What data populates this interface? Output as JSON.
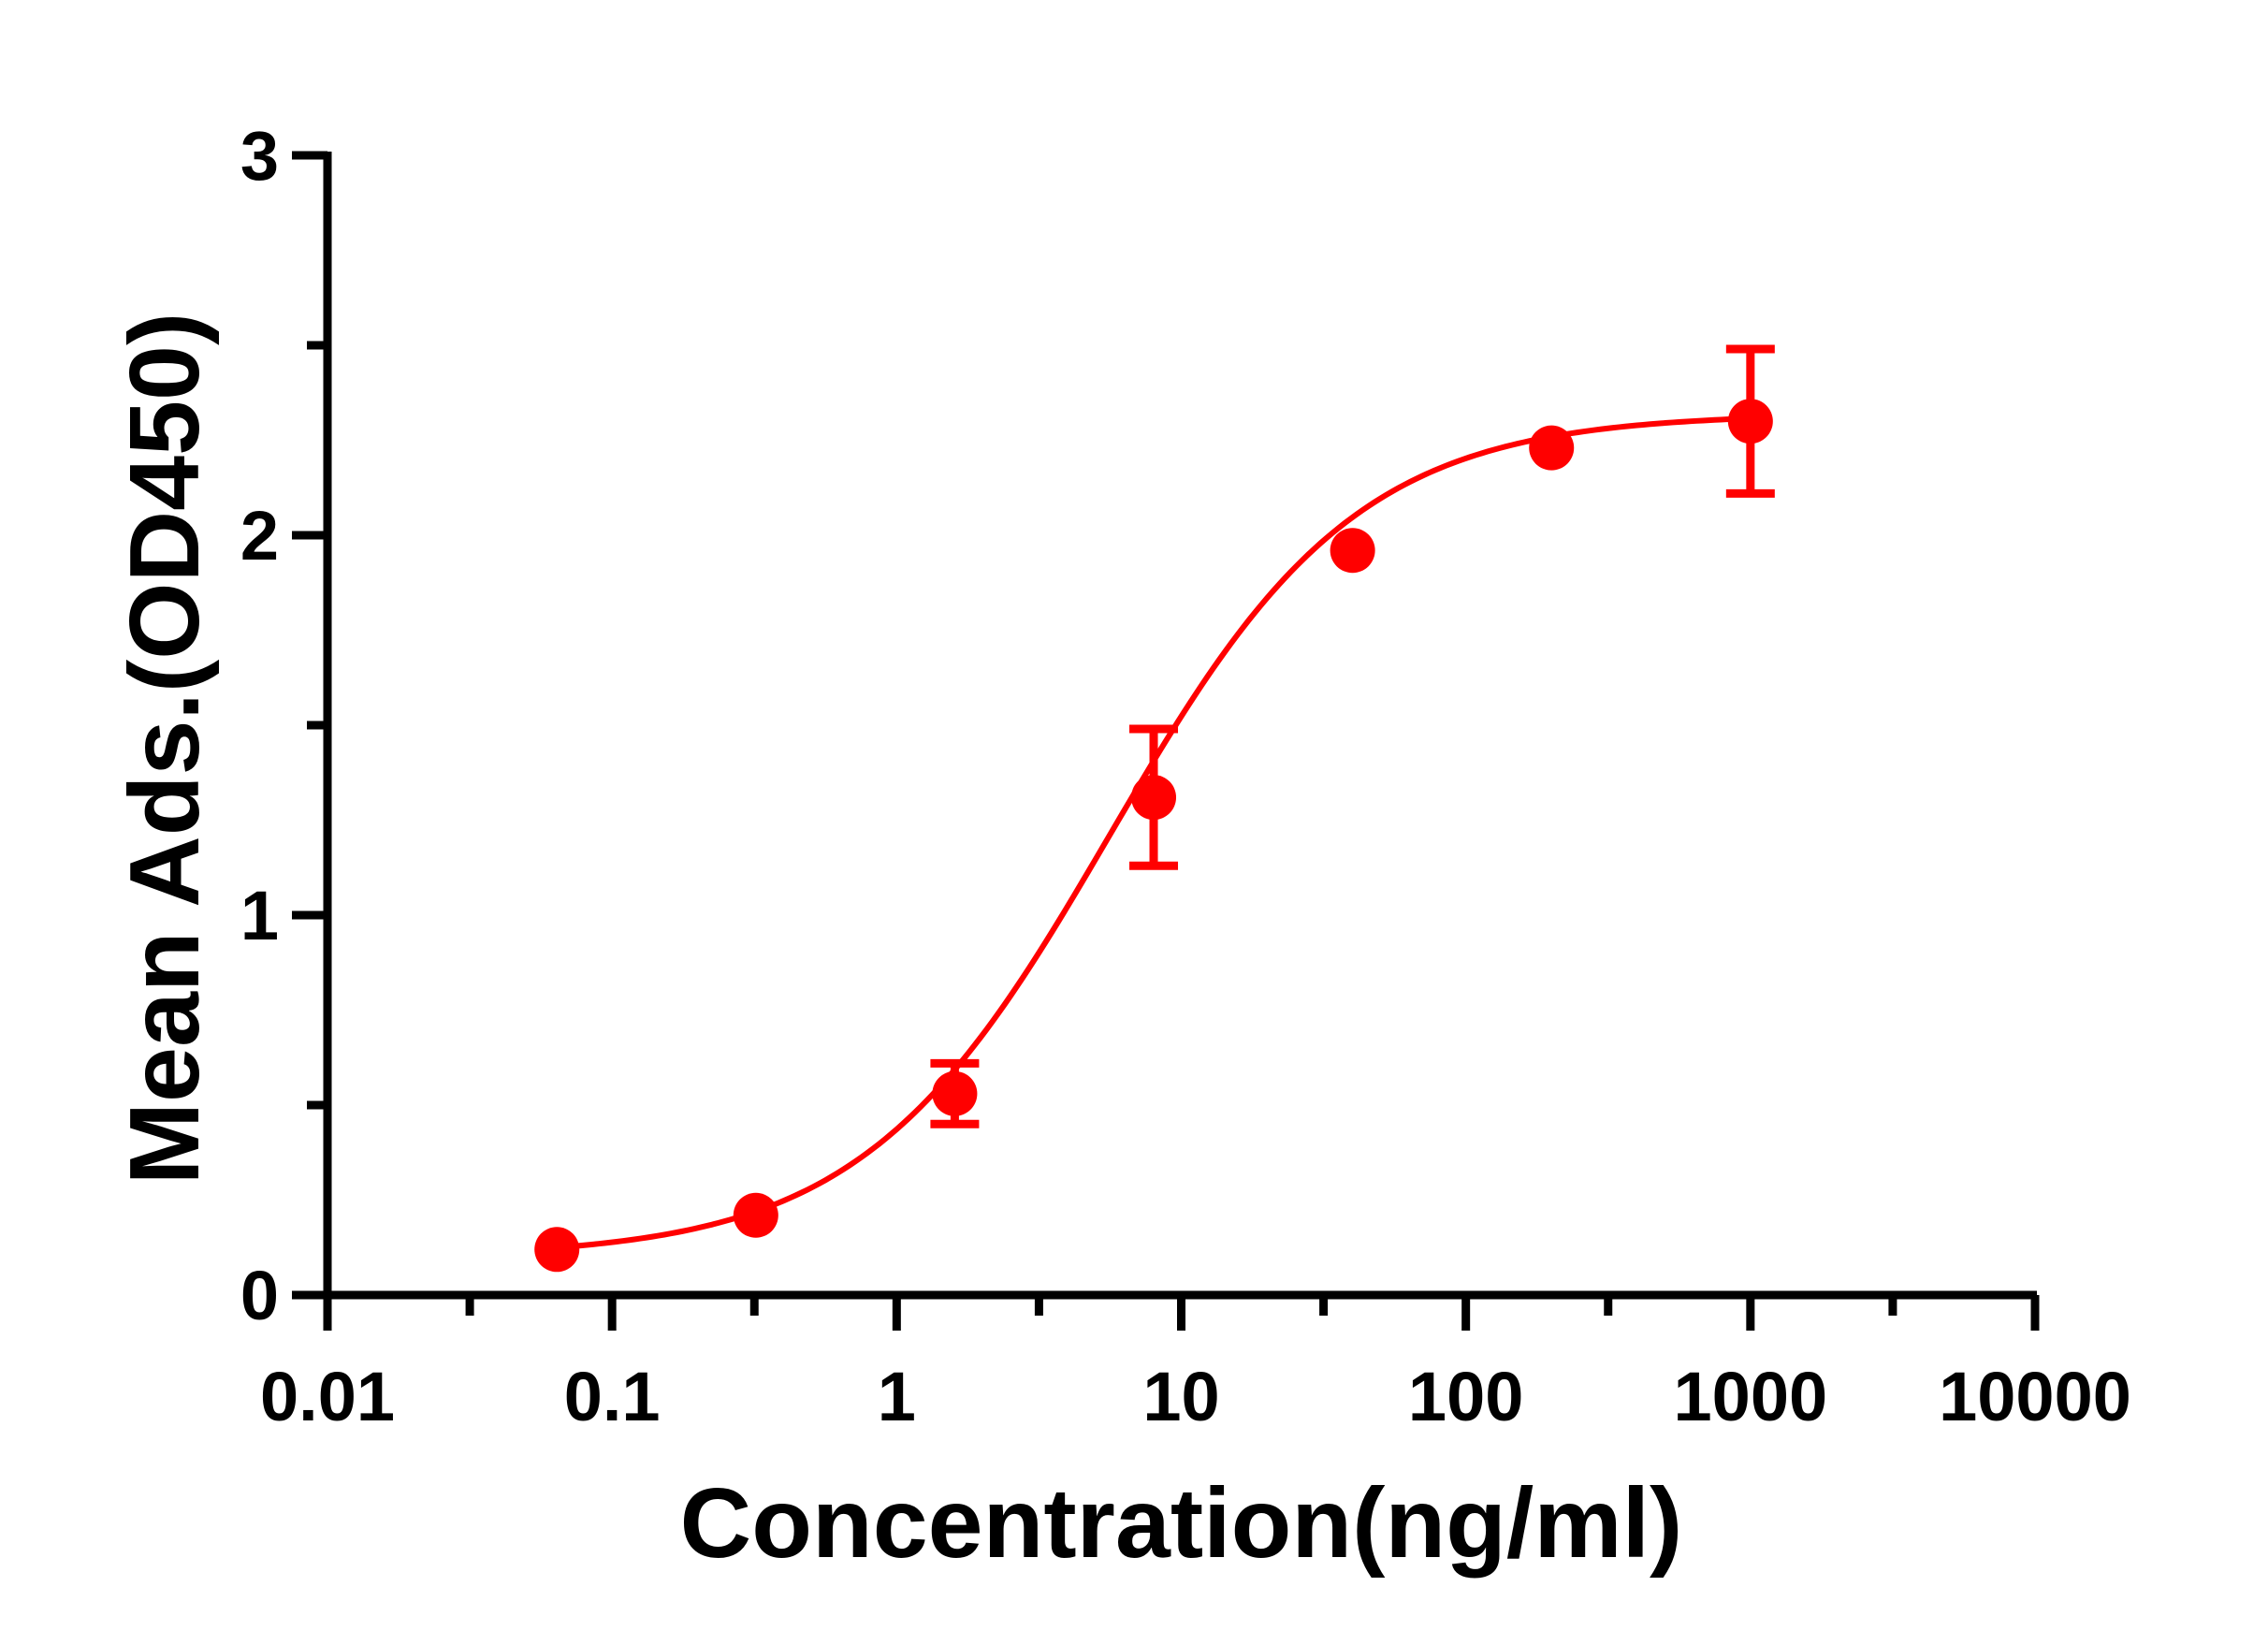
{
  "chart_data": {
    "type": "scatter",
    "title": "",
    "xlabel": "Concentration(ng/ml)",
    "ylabel": "Mean Ads.(OD450)",
    "x_scale": "log",
    "xlim": [
      0.01,
      10000
    ],
    "ylim": [
      0,
      3
    ],
    "x_ticks": [
      0.01,
      0.1,
      1,
      10,
      100,
      1000,
      10000
    ],
    "x_tick_labels": [
      "0.01",
      "0.1",
      "1",
      "10",
      "100",
      "1000",
      "10000"
    ],
    "y_ticks": [
      0,
      1,
      2,
      3
    ],
    "y_tick_labels": [
      "0",
      "1",
      "2",
      "3"
    ],
    "grid": false,
    "legend": "none",
    "color": "#ff0000",
    "series": [
      {
        "x": [
          0.064,
          0.32,
          1.6,
          8,
          40,
          200,
          1000
        ],
        "y": [
          0.12,
          0.21,
          0.53,
          1.31,
          1.96,
          2.23,
          2.3
        ],
        "error": [
          0.0,
          0.0,
          0.08,
          0.18,
          0.0,
          0.0,
          0.19
        ],
        "fit": "sigmoidal 4PL"
      }
    ]
  }
}
